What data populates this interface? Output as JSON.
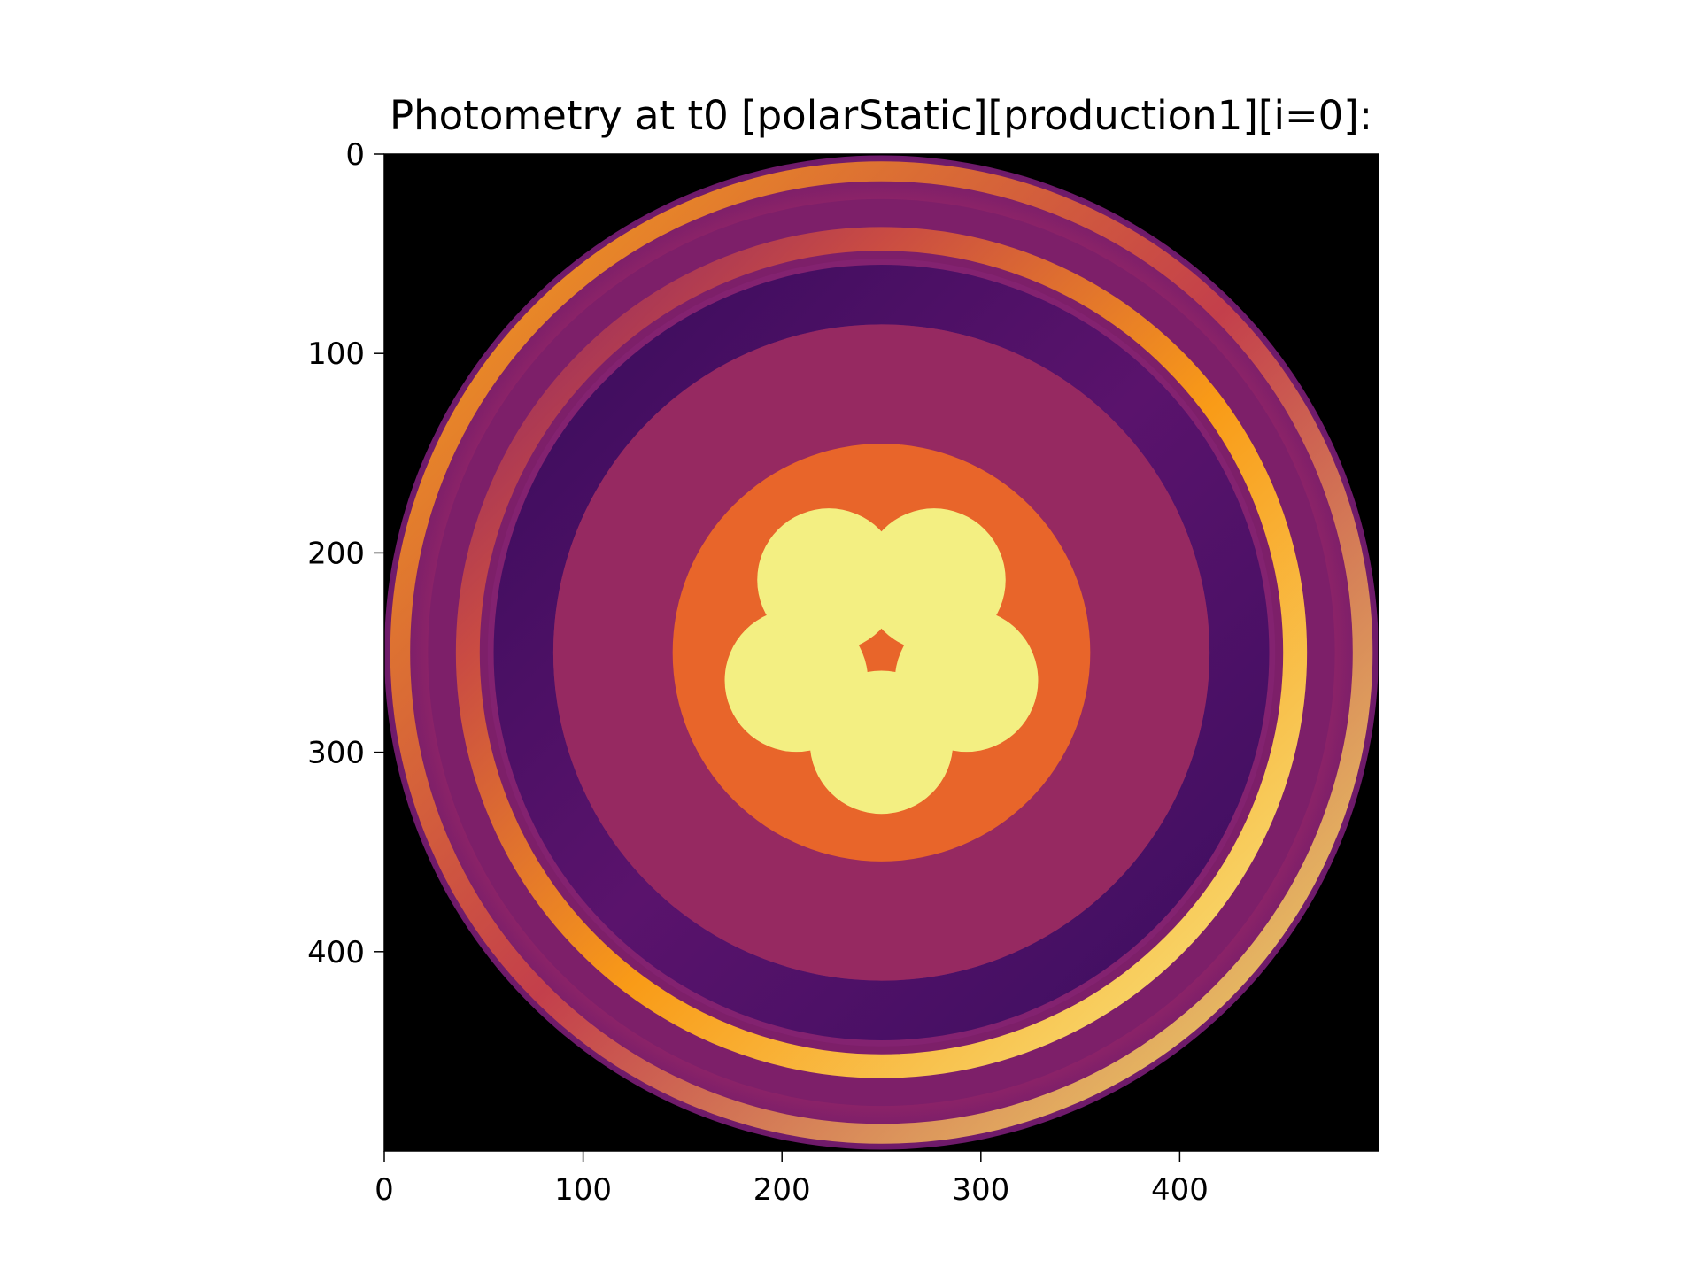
{
  "figure": {
    "title": "Photometry at t0 [polarStatic][production1][i=0]:"
  },
  "chart_data": {
    "type": "heatmap",
    "title": "Photometry at t0 [polarStatic][production1][i=0]:",
    "xlabel": "",
    "ylabel": "",
    "xlim": [
      0,
      500
    ],
    "ylim": [
      500,
      0
    ],
    "x_ticks": [
      0,
      100,
      200,
      300,
      400
    ],
    "y_ticks": [
      0,
      100,
      200,
      300,
      400
    ],
    "colormap": "inferno",
    "background": "#000000",
    "image_center": [
      250,
      250
    ],
    "disk_radius": 250,
    "description_features": {
      "outer_ring_radius_range": [
        200,
        250
      ],
      "inner_dark_ring_radius_range": [
        165,
        195
      ],
      "middle_disk_radius": 165,
      "core_radius": 105,
      "lobe_count": 5,
      "lobe_ring_radius": 45,
      "lobe_radius": 36
    }
  }
}
